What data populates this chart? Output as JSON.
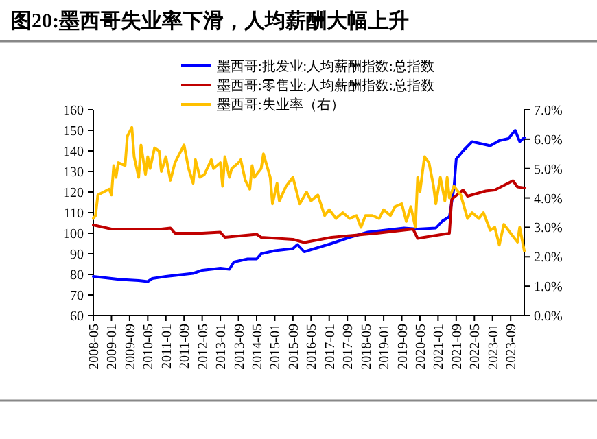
{
  "chart_data": {
    "type": "line",
    "title": "图20:墨西哥失业率下滑，人均薪酬大幅上升",
    "xlim": [
      "2008-05",
      "2024-03"
    ],
    "xticks": [
      "2008-05",
      "2009-01",
      "2009-09",
      "2010-05",
      "2011-01",
      "2011-09",
      "2012-05",
      "2013-01",
      "2013-09",
      "2014-05",
      "2015-01",
      "2015-09",
      "2016-05",
      "2017-01",
      "2017-09",
      "2018-05",
      "2019-01",
      "2019-09",
      "2020-05",
      "2021-01",
      "2021-09",
      "2022-05",
      "2023-01",
      "2023-09"
    ],
    "ylim": [
      60,
      160
    ],
    "yticks": [
      60,
      70,
      80,
      90,
      100,
      110,
      120,
      130,
      140,
      150,
      160
    ],
    "y2lim": [
      0,
      7
    ],
    "y2ticks": [
      {
        "value": 0,
        "label": "0.0%"
      },
      {
        "value": 1,
        "label": "1.0%"
      },
      {
        "value": 2,
        "label": "2.0%"
      },
      {
        "value": 3,
        "label": "3.0%"
      },
      {
        "value": 4,
        "label": "4.0%"
      },
      {
        "value": 5,
        "label": "5.0%"
      },
      {
        "value": 6,
        "label": "6.0%"
      },
      {
        "value": 7,
        "label": "7.0%"
      }
    ],
    "legend": "top",
    "grid": false,
    "series": [
      {
        "name": "墨西哥:批发业:人均薪酬指数:总指数",
        "color": "#0000ff",
        "x": [
          "2008-05",
          "2009-01",
          "2009-05",
          "2010-01",
          "2010-05",
          "2010-07",
          "2011-01",
          "2011-09",
          "2012-01",
          "2012-05",
          "2013-01",
          "2013-05",
          "2013-07",
          "2014-01",
          "2014-05",
          "2014-07",
          "2015-01",
          "2015-09",
          "2015-11",
          "2016-02",
          "2017-02",
          "2017-10",
          "2018-06",
          "2019-10",
          "2020-04",
          "2020-12",
          "2021-03",
          "2021-06",
          "2021-08",
          "2021-09",
          "2021-12",
          "2022-04",
          "2022-12",
          "2023-04",
          "2023-08",
          "2023-11",
          "2024-01",
          "2024-03"
        ],
        "values": [
          79,
          78,
          77.5,
          77,
          76.5,
          78,
          79,
          80,
          80.5,
          82,
          83,
          82.5,
          86,
          87.5,
          87.5,
          90,
          91.5,
          92.5,
          94.5,
          91,
          95,
          98,
          100.5,
          102.5,
          102,
          102.5,
          106,
          108,
          122,
          136,
          140,
          144.5,
          142.5,
          145,
          146,
          150,
          144.5,
          146.5
        ]
      },
      {
        "name": "墨西哥:零售业:人均薪酬指数:总指数",
        "color": "#c00000",
        "x": [
          "2008-05",
          "2009-01",
          "2010-01",
          "2010-11",
          "2011-03",
          "2011-05",
          "2012-05",
          "2013-01",
          "2013-03",
          "2014-05",
          "2014-07",
          "2015-09",
          "2016-02",
          "2017-02",
          "2018-10",
          "2020-02",
          "2020-04",
          "2021-06",
          "2021-07",
          "2021-12",
          "2022-02",
          "2022-10",
          "2023-02",
          "2023-10",
          "2023-12",
          "2024-03"
        ],
        "values": [
          104,
          102,
          102,
          102,
          102.5,
          100,
          100,
          100.5,
          98,
          99.5,
          98,
          97,
          95.5,
          98,
          100,
          102,
          97.5,
          100,
          116.5,
          121,
          118,
          120.5,
          121,
          125.5,
          122.5,
          122
        ]
      },
      {
        "name": "墨西哥:失业率（右）",
        "color": "#ffc000",
        "axis": "y2",
        "x": [
          "2008-05",
          "2008-06",
          "2008-07",
          "2008-12",
          "2009-01",
          "2009-02",
          "2009-03",
          "2009-04",
          "2009-07",
          "2009-08",
          "2009-10",
          "2009-11",
          "2010-01",
          "2010-02",
          "2010-04",
          "2010-05",
          "2010-06",
          "2010-08",
          "2010-10",
          "2010-11",
          "2011-01",
          "2011-03",
          "2011-05",
          "2011-09",
          "2011-11",
          "2012-01",
          "2012-02",
          "2012-04",
          "2012-06",
          "2012-09",
          "2012-10",
          "2013-01",
          "2013-02",
          "2013-03",
          "2013-05",
          "2013-06",
          "2013-09",
          "2013-10",
          "2013-12",
          "2014-02",
          "2014-03",
          "2014-04",
          "2014-07",
          "2014-08",
          "2014-11",
          "2014-12",
          "2015-02",
          "2015-03",
          "2015-06",
          "2015-09",
          "2015-12",
          "2016-03",
          "2016-05",
          "2016-08",
          "2016-11",
          "2017-01",
          "2017-04",
          "2017-07",
          "2017-10",
          "2018-01",
          "2018-03",
          "2018-05",
          "2018-08",
          "2018-11",
          "2019-01",
          "2019-04",
          "2019-06",
          "2019-09",
          "2019-11",
          "2020-01",
          "2020-03",
          "2020-04",
          "2020-05",
          "2020-07",
          "2020-09",
          "2020-11",
          "2020-12",
          "2021-02",
          "2021-04",
          "2021-05",
          "2021-06",
          "2021-08",
          "2021-11",
          "2022-02",
          "2022-04",
          "2022-07",
          "2022-09",
          "2022-12",
          "2023-02",
          "2023-04",
          "2023-06",
          "2023-09",
          "2023-12",
          "2024-01",
          "2024-03"
        ],
        "values": [
          3.3,
          3.4,
          4.1,
          4.3,
          4.1,
          5.1,
          4.7,
          5.2,
          5.1,
          6.1,
          6.4,
          5.4,
          4.7,
          5.8,
          4.8,
          5.4,
          5.0,
          5.7,
          5.6,
          4.9,
          5.4,
          4.6,
          5.2,
          5.8,
          5.0,
          4.5,
          5.3,
          4.7,
          4.8,
          5.3,
          5.0,
          5.2,
          4.4,
          5.4,
          4.7,
          5.0,
          5.2,
          5.3,
          4.6,
          4.3,
          5.1,
          4.7,
          5.0,
          5.5,
          4.7,
          3.8,
          4.5,
          3.9,
          4.4,
          4.7,
          3.8,
          4.2,
          3.9,
          4.1,
          3.4,
          3.6,
          3.3,
          3.5,
          3.3,
          3.4,
          3.0,
          3.4,
          3.4,
          3.3,
          3.6,
          3.4,
          3.7,
          3.8,
          3.2,
          3.7,
          3.0,
          4.7,
          4.2,
          5.4,
          5.2,
          4.4,
          3.8,
          4.7,
          3.9,
          4.7,
          4.0,
          4.4,
          4.1,
          3.3,
          3.5,
          3.3,
          3.5,
          2.9,
          3.0,
          2.4,
          3.1,
          2.8,
          2.5,
          3.0,
          2.2
        ]
      }
    ]
  }
}
